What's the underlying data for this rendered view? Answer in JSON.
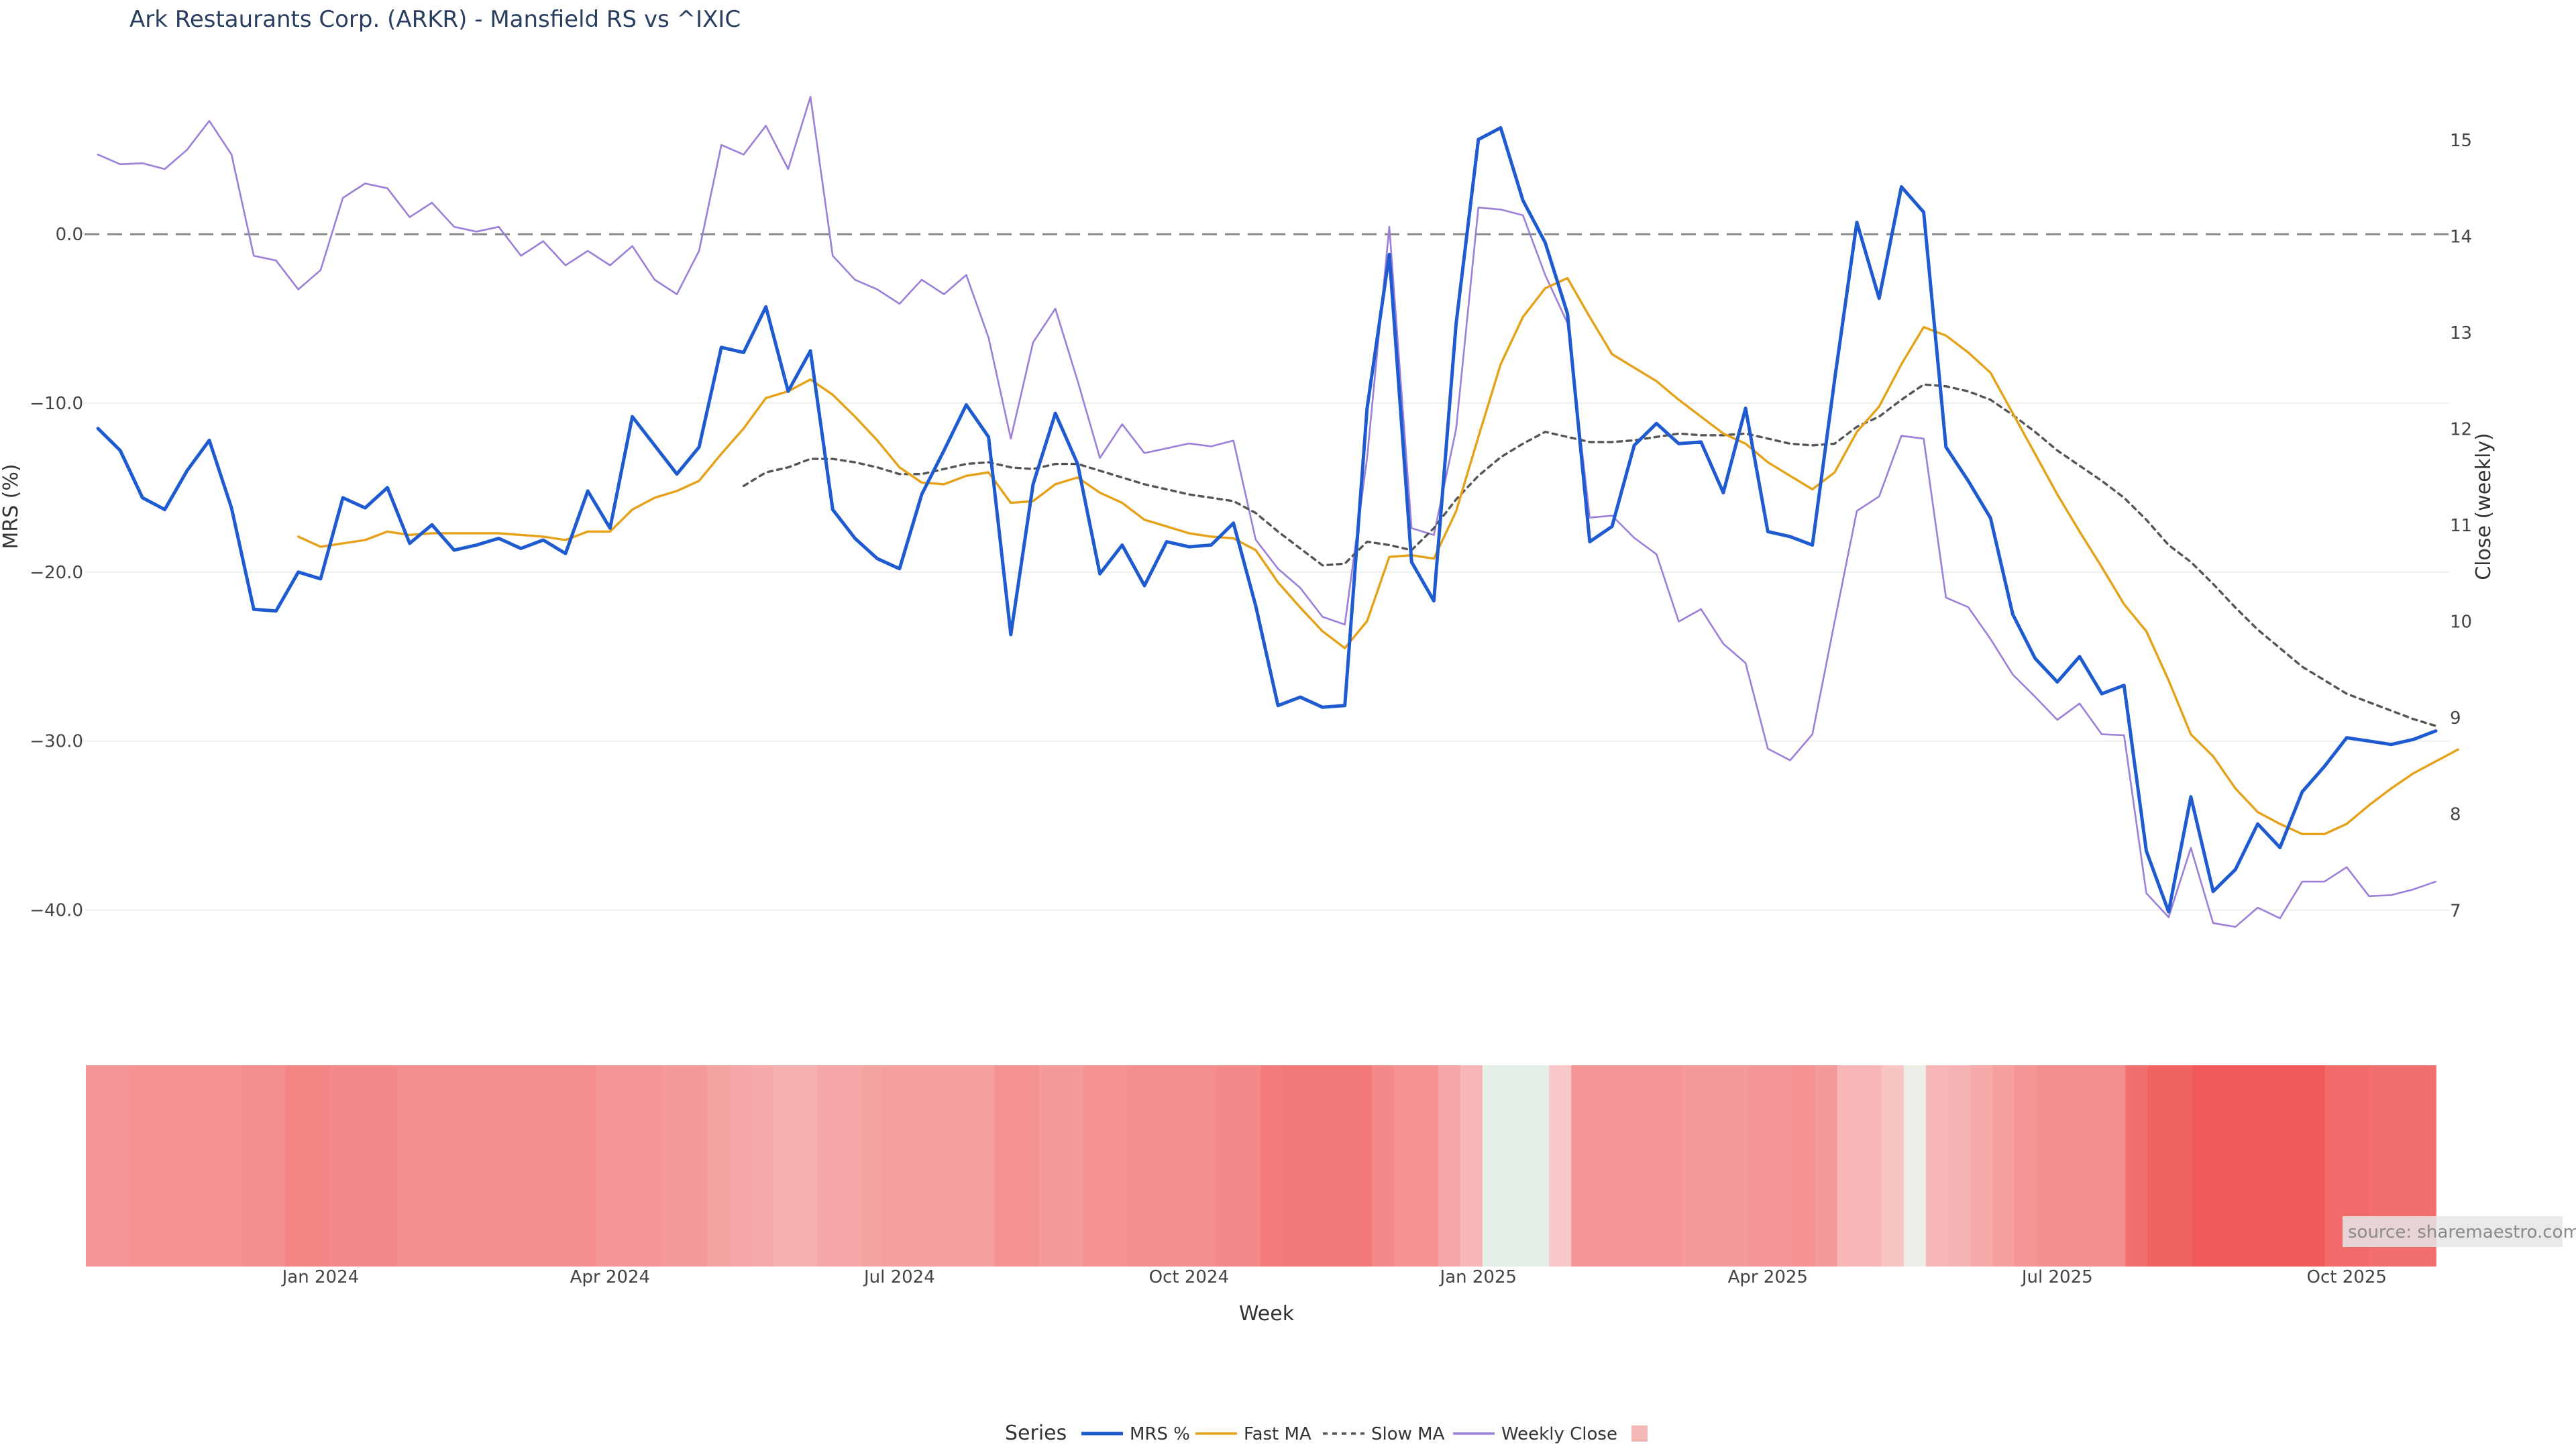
{
  "chart_data": {
    "type": "line",
    "title": "Ark Restaurants Corp. (ARKR) - Mansfield RS vs ^IXIC",
    "xlabel": "Week",
    "ylabel": "MRS (%)",
    "y2label": "Close (weekly)",
    "ylim": [
      -44.7,
      8.3
    ],
    "y2lim": [
      6.18,
      15.48
    ],
    "yticks": [
      -40,
      -30,
      -20,
      -10,
      0
    ],
    "ytick_labels": [
      "−40.0",
      "−30.0",
      "−20.0",
      "−10.0",
      "0.0"
    ],
    "y2ticks": [
      7,
      8,
      9,
      10,
      11,
      12,
      13,
      14,
      15
    ],
    "y2tick_labels": [
      "7",
      "8",
      "9",
      "10",
      "11",
      "12",
      "13",
      "14",
      "15"
    ],
    "x_ticks": [
      {
        "label": "Jan 2024",
        "week": 10
      },
      {
        "label": "Apr 2024",
        "week": 23
      },
      {
        "label": "Jul 2024",
        "week": 36
      },
      {
        "label": "Oct 2024",
        "week": 49
      },
      {
        "label": "Jan 2025",
        "week": 62
      },
      {
        "label": "Apr 2025",
        "week": 75
      },
      {
        "label": "Jul 2025",
        "week": 88
      },
      {
        "label": "Oct 2025",
        "week": 101
      }
    ],
    "x_count": 106,
    "zero_line": 0,
    "series": [
      {
        "name": "MRS %",
        "color": "#1f5bd0",
        "axis": "y",
        "values": [
          -11.5,
          -12.8,
          -15.6,
          -16.3,
          -14.0,
          -12.2,
          -16.2,
          -22.2,
          -22.3,
          -20.0,
          -20.4,
          -15.6,
          -16.2,
          -15.0,
          -18.3,
          -17.2,
          -18.7,
          -18.4,
          -18.0,
          -18.6,
          -18.1,
          -18.9,
          -15.2,
          -17.4,
          -10.8,
          -12.5,
          -14.2,
          -12.6,
          -6.7,
          -7.0,
          -4.3,
          -9.3,
          -6.9,
          -16.3,
          -18.0,
          -19.2,
          -19.8,
          -15.4,
          -12.8,
          -10.1,
          -12.0,
          -23.7,
          -14.8,
          -10.6,
          -13.6,
          -20.1,
          -18.4,
          -20.8,
          -18.2,
          -18.5,
          -18.4,
          -17.1,
          -22.0,
          -27.9,
          -27.4,
          -28.0,
          -27.9,
          -10.3,
          -1.2,
          -19.4,
          -21.7,
          -5.3,
          5.6,
          6.3,
          2.0,
          -0.5,
          -4.7,
          -18.2,
          -17.3,
          -12.5,
          -11.2,
          -12.4,
          -12.3,
          -15.3,
          -10.3,
          -17.6,
          -17.9,
          -18.4,
          -8.6,
          0.7,
          -3.8,
          2.8,
          1.3,
          -12.6,
          -14.6,
          -16.8,
          -22.5,
          -25.1,
          -26.5,
          -25.0,
          -27.2,
          -26.7,
          -36.5,
          -40.1,
          -33.3,
          -38.9,
          -37.6,
          -34.9,
          -36.3,
          -33.0,
          -31.5,
          -29.8,
          -30.0,
          -30.2,
          -29.9,
          -29.4
        ]
      },
      {
        "name": "Fast MA",
        "color": "#e5a117",
        "axis": "y",
        "values": [
          null,
          null,
          null,
          null,
          null,
          null,
          null,
          null,
          null,
          -17.9,
          -18.5,
          -18.3,
          -18.1,
          -17.6,
          -17.8,
          -17.7,
          -17.7,
          -17.7,
          -17.7,
          -17.8,
          -17.9,
          -18.1,
          -17.6,
          -17.6,
          -16.3,
          -15.6,
          -15.2,
          -14.6,
          -13.0,
          -11.5,
          -9.7,
          -9.3,
          -8.6,
          -9.5,
          -10.8,
          -12.2,
          -13.8,
          -14.7,
          -14.8,
          -14.3,
          -14.1,
          -15.9,
          -15.8,
          -14.8,
          -14.4,
          -15.3,
          -15.9,
          -16.9,
          -17.3,
          -17.7,
          -17.9,
          -18.0,
          -18.7,
          -20.6,
          -22.1,
          -23.5,
          -24.5,
          -22.9,
          -19.1,
          -19.0,
          -19.2,
          -16.4,
          -12.0,
          -7.7,
          -4.9,
          -3.2,
          -2.6,
          -4.9,
          -7.1,
          -7.9,
          -8.7,
          -9.8,
          -10.8,
          -11.8,
          -12.4,
          -13.5,
          -14.3,
          -15.1,
          -14.1,
          -11.7,
          -10.2,
          -7.7,
          -5.5,
          -6.0,
          -7.0,
          -8.2,
          -10.6,
          -13.0,
          -15.4,
          -17.6,
          -19.7,
          -21.9,
          -23.5,
          -26.4,
          -29.6,
          -30.9,
          -32.8,
          -34.2,
          -34.9,
          -35.5,
          -35.5,
          -34.9,
          -33.8,
          -32.8,
          -31.9,
          -31.2,
          -30.5
        ]
      },
      {
        "name": "Slow MA",
        "color": "#555555",
        "axis": "y",
        "dash": true,
        "values": [
          null,
          null,
          null,
          null,
          null,
          null,
          null,
          null,
          null,
          null,
          null,
          null,
          null,
          null,
          null,
          null,
          null,
          null,
          null,
          null,
          null,
          null,
          null,
          null,
          null,
          null,
          null,
          null,
          null,
          -14.9,
          -14.1,
          -13.8,
          -13.3,
          -13.3,
          -13.5,
          -13.8,
          -14.2,
          -14.2,
          -13.9,
          -13.6,
          -13.5,
          -13.8,
          -13.9,
          -13.6,
          -13.6,
          -14.0,
          -14.4,
          -14.8,
          -15.1,
          -15.4,
          -15.6,
          -15.8,
          -16.5,
          -17.6,
          -18.6,
          -19.6,
          -19.5,
          -18.2,
          -18.4,
          -18.7,
          -17.4,
          -15.7,
          -14.3,
          -13.2,
          -12.4,
          -11.7,
          -12.0,
          -12.3,
          -12.3,
          -12.2,
          -12.0,
          -11.8,
          -11.9,
          -11.9,
          -11.8,
          -12.1,
          -12.4,
          -12.5,
          -12.4,
          -11.4,
          -10.8,
          -9.8,
          -8.9,
          -9.0,
          -9.3,
          -9.8,
          -10.7,
          -11.7,
          -12.8,
          -13.7,
          -14.6,
          -15.6,
          -16.9,
          -18.4,
          -19.4,
          -20.7,
          -22.1,
          -23.4,
          -24.5,
          -25.6,
          -26.4,
          -27.2,
          -27.7,
          -28.2,
          -28.7,
          -29.1
        ]
      },
      {
        "name": "Weekly Close",
        "color": "#9b7fd8",
        "axis": "y2",
        "values": [
          14.85,
          14.75,
          14.76,
          14.7,
          14.9,
          15.2,
          14.85,
          13.8,
          13.75,
          13.45,
          13.65,
          14.4,
          14.55,
          14.5,
          14.2,
          14.35,
          14.1,
          14.05,
          14.1,
          13.8,
          13.95,
          13.7,
          13.85,
          13.7,
          13.9,
          13.55,
          13.4,
          13.85,
          14.95,
          14.85,
          15.15,
          14.7,
          15.45,
          13.8,
          13.55,
          13.45,
          13.3,
          13.55,
          13.4,
          13.6,
          12.95,
          11.9,
          12.9,
          13.25,
          12.5,
          11.7,
          12.05,
          11.75,
          11.8,
          11.85,
          11.82,
          11.88,
          10.85,
          10.55,
          10.35,
          10.05,
          9.97,
          11.7,
          14.1,
          10.97,
          10.9,
          12.0,
          14.3,
          14.28,
          14.22,
          13.6,
          13.1,
          11.08,
          11.1,
          10.87,
          10.7,
          10.0,
          10.13,
          9.77,
          9.57,
          8.68,
          8.56,
          8.83,
          10.0,
          11.15,
          11.3,
          11.93,
          11.9,
          10.25,
          10.15,
          9.82,
          9.45,
          9.22,
          8.98,
          9.15,
          8.83,
          8.82,
          7.18,
          6.93,
          7.65,
          6.87,
          6.83,
          7.03,
          6.92,
          7.3,
          7.3,
          7.45,
          7.15,
          7.16,
          7.22,
          7.3
        ]
      }
    ],
    "heatmap_strip": {
      "label": "",
      "values": [
        -18,
        -18,
        -19,
        -19,
        -19,
        -19,
        -19,
        -20,
        -20,
        -22,
        -22,
        -21,
        -21,
        -21,
        -20,
        -20,
        -20,
        -20,
        -20,
        -20,
        -20,
        -20,
        -20,
        -18,
        -18,
        -18,
        -17,
        -17,
        -15,
        -14,
        -13,
        -12,
        -12,
        -14,
        -14,
        -15,
        -16,
        -16,
        -16,
        -16,
        -16,
        -19,
        -19,
        -17,
        -17,
        -19,
        -19,
        -20,
        -20,
        -20,
        -20,
        -21,
        -21,
        -24,
        -25,
        -25,
        -25,
        -25,
        -21,
        -19,
        -19,
        -14,
        -10,
        6,
        6,
        6,
        -6,
        -18,
        -18,
        -18,
        -18,
        -18,
        -17,
        -17,
        -17,
        -18,
        -18,
        -19,
        -17,
        -10,
        -10,
        -7,
        4,
        -10,
        -11,
        -13,
        -16,
        -18,
        -20,
        -20,
        -20,
        -20,
        -27,
        -30,
        -30,
        -32,
        -32,
        -32,
        -32,
        -32,
        -32,
        -28,
        -28,
        -27,
        -27,
        -27
      ]
    },
    "legend": {
      "title": "Series",
      "placement": "bottom-center",
      "items": [
        "MRS %",
        "Fast MA",
        "Slow MA",
        "Weekly Close",
        ""
      ]
    },
    "source_note": "source: sharemaestro.com"
  }
}
